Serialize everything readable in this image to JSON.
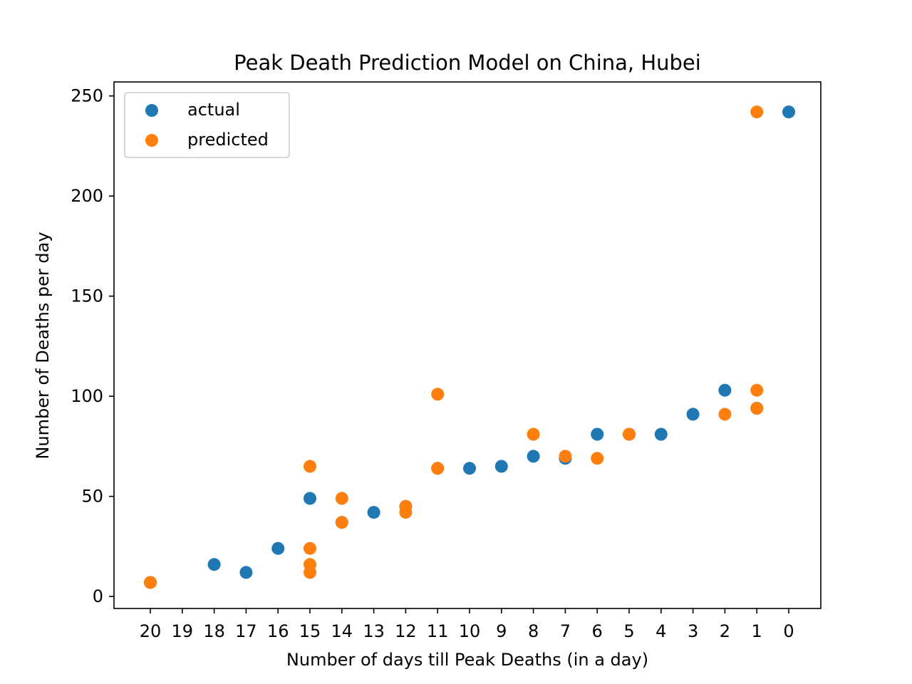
{
  "chart_data": {
    "type": "scatter",
    "title": "Peak Death Prediction Model on China, Hubei",
    "xlabel": "Number of days till Peak Deaths (in a day)",
    "ylabel": "Number of Deaths per day",
    "x_ticks": [
      "20",
      "19",
      "18",
      "17",
      "16",
      "15",
      "14",
      "13",
      "12",
      "11",
      "10",
      "9",
      "8",
      "7",
      "6",
      "5",
      "4",
      "3",
      "2",
      "1",
      "0"
    ],
    "y_ticks": [
      0,
      50,
      100,
      150,
      200,
      250
    ],
    "ylim": [
      -6,
      257
    ],
    "x_order": "descending",
    "grid": false,
    "legend_position": "top-left",
    "series": [
      {
        "name": "actual",
        "color": "#1f77b4",
        "points": [
          {
            "x": 20,
            "y": 7
          },
          {
            "x": 18,
            "y": 16
          },
          {
            "x": 17,
            "y": 12
          },
          {
            "x": 16,
            "y": 24
          },
          {
            "x": 15,
            "y": 49
          },
          {
            "x": 14,
            "y": 37
          },
          {
            "x": 13,
            "y": 42
          },
          {
            "x": 12,
            "y": 45
          },
          {
            "x": 11,
            "y": 64
          },
          {
            "x": 10,
            "y": 64
          },
          {
            "x": 9,
            "y": 65
          },
          {
            "x": 8,
            "y": 70
          },
          {
            "x": 7,
            "y": 69
          },
          {
            "x": 6,
            "y": 81
          },
          {
            "x": 5,
            "y": 81
          },
          {
            "x": 4,
            "y": 81
          },
          {
            "x": 3,
            "y": 91
          },
          {
            "x": 2,
            "y": 103
          },
          {
            "x": 1,
            "y": 94
          },
          {
            "x": 0,
            "y": 242
          }
        ]
      },
      {
        "name": "predicted",
        "color": "#ff7f0e",
        "points": [
          {
            "x": 20,
            "y": 7
          },
          {
            "x": 15,
            "y": 65
          },
          {
            "x": 15,
            "y": 24
          },
          {
            "x": 15,
            "y": 16
          },
          {
            "x": 15,
            "y": 12
          },
          {
            "x": 14,
            "y": 49
          },
          {
            "x": 14,
            "y": 37
          },
          {
            "x": 12,
            "y": 45
          },
          {
            "x": 12,
            "y": 42
          },
          {
            "x": 11,
            "y": 101
          },
          {
            "x": 11,
            "y": 64
          },
          {
            "x": 8,
            "y": 81
          },
          {
            "x": 7,
            "y": 70
          },
          {
            "x": 6,
            "y": 69
          },
          {
            "x": 5,
            "y": 81
          },
          {
            "x": 2,
            "y": 91
          },
          {
            "x": 1,
            "y": 242
          },
          {
            "x": 1,
            "y": 103
          },
          {
            "x": 1,
            "y": 94
          }
        ]
      }
    ]
  }
}
